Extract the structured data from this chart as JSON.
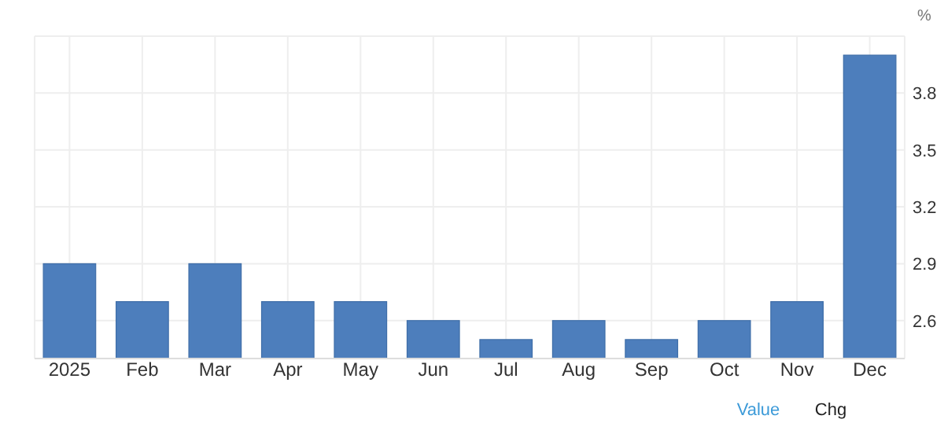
{
  "chart_data": {
    "type": "bar",
    "ylabel": "%",
    "categories": [
      "2025",
      "Feb",
      "Mar",
      "Apr",
      "May",
      "Jun",
      "Jul",
      "Aug",
      "Sep",
      "Oct",
      "Nov",
      "Dec"
    ],
    "values": [
      2.9,
      2.7,
      2.9,
      2.7,
      2.7,
      2.6,
      2.5,
      2.6,
      2.5,
      2.6,
      2.7,
      4.0
    ],
    "color": "#4d7ebc",
    "ylim": [
      2.4,
      4.1
    ],
    "yticks": [
      2.6,
      2.9,
      3.2,
      3.5,
      3.8
    ],
    "grid": true,
    "annotations": [
      "Value",
      "Chg"
    ]
  }
}
